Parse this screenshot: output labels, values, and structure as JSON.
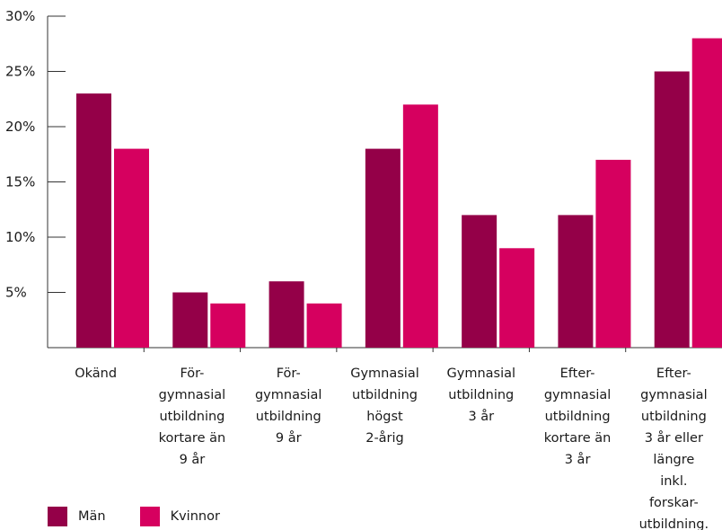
{
  "chart_data": {
    "type": "bar",
    "y_ticks": [
      "30%",
      "25%",
      "20%",
      "15%",
      "10%",
      "5%"
    ],
    "y_tick_values": [
      30,
      25,
      20,
      15,
      10,
      5
    ],
    "ylim": [
      0,
      30
    ],
    "grid": false,
    "legend_position": "bottom-left",
    "categories": [
      [
        "Okänd"
      ],
      [
        "För-",
        "gymnasial",
        "utbildning",
        "kortare än",
        "9 år"
      ],
      [
        "För-",
        "gymnasial",
        "utbildning",
        "9 år"
      ],
      [
        "Gymnasial",
        "utbildning",
        "högst",
        "2-årig"
      ],
      [
        "Gymnasial",
        "utbildning",
        "3 år"
      ],
      [
        "Efter-",
        "gymnasial",
        "utbildning",
        "kortare än",
        "3 år"
      ],
      [
        "Efter-",
        "gymnasial",
        "utbildning",
        "3 år eller",
        "längre",
        "inkl.",
        "forskar-",
        "utbildning."
      ]
    ],
    "series": [
      {
        "name": "Män",
        "color": "#940048",
        "values": [
          23,
          5,
          6,
          18,
          12,
          12,
          25
        ]
      },
      {
        "name": "Kvinnor",
        "color": "#d6005f",
        "values": [
          18,
          4,
          4,
          22,
          9,
          17,
          28
        ]
      }
    ]
  }
}
